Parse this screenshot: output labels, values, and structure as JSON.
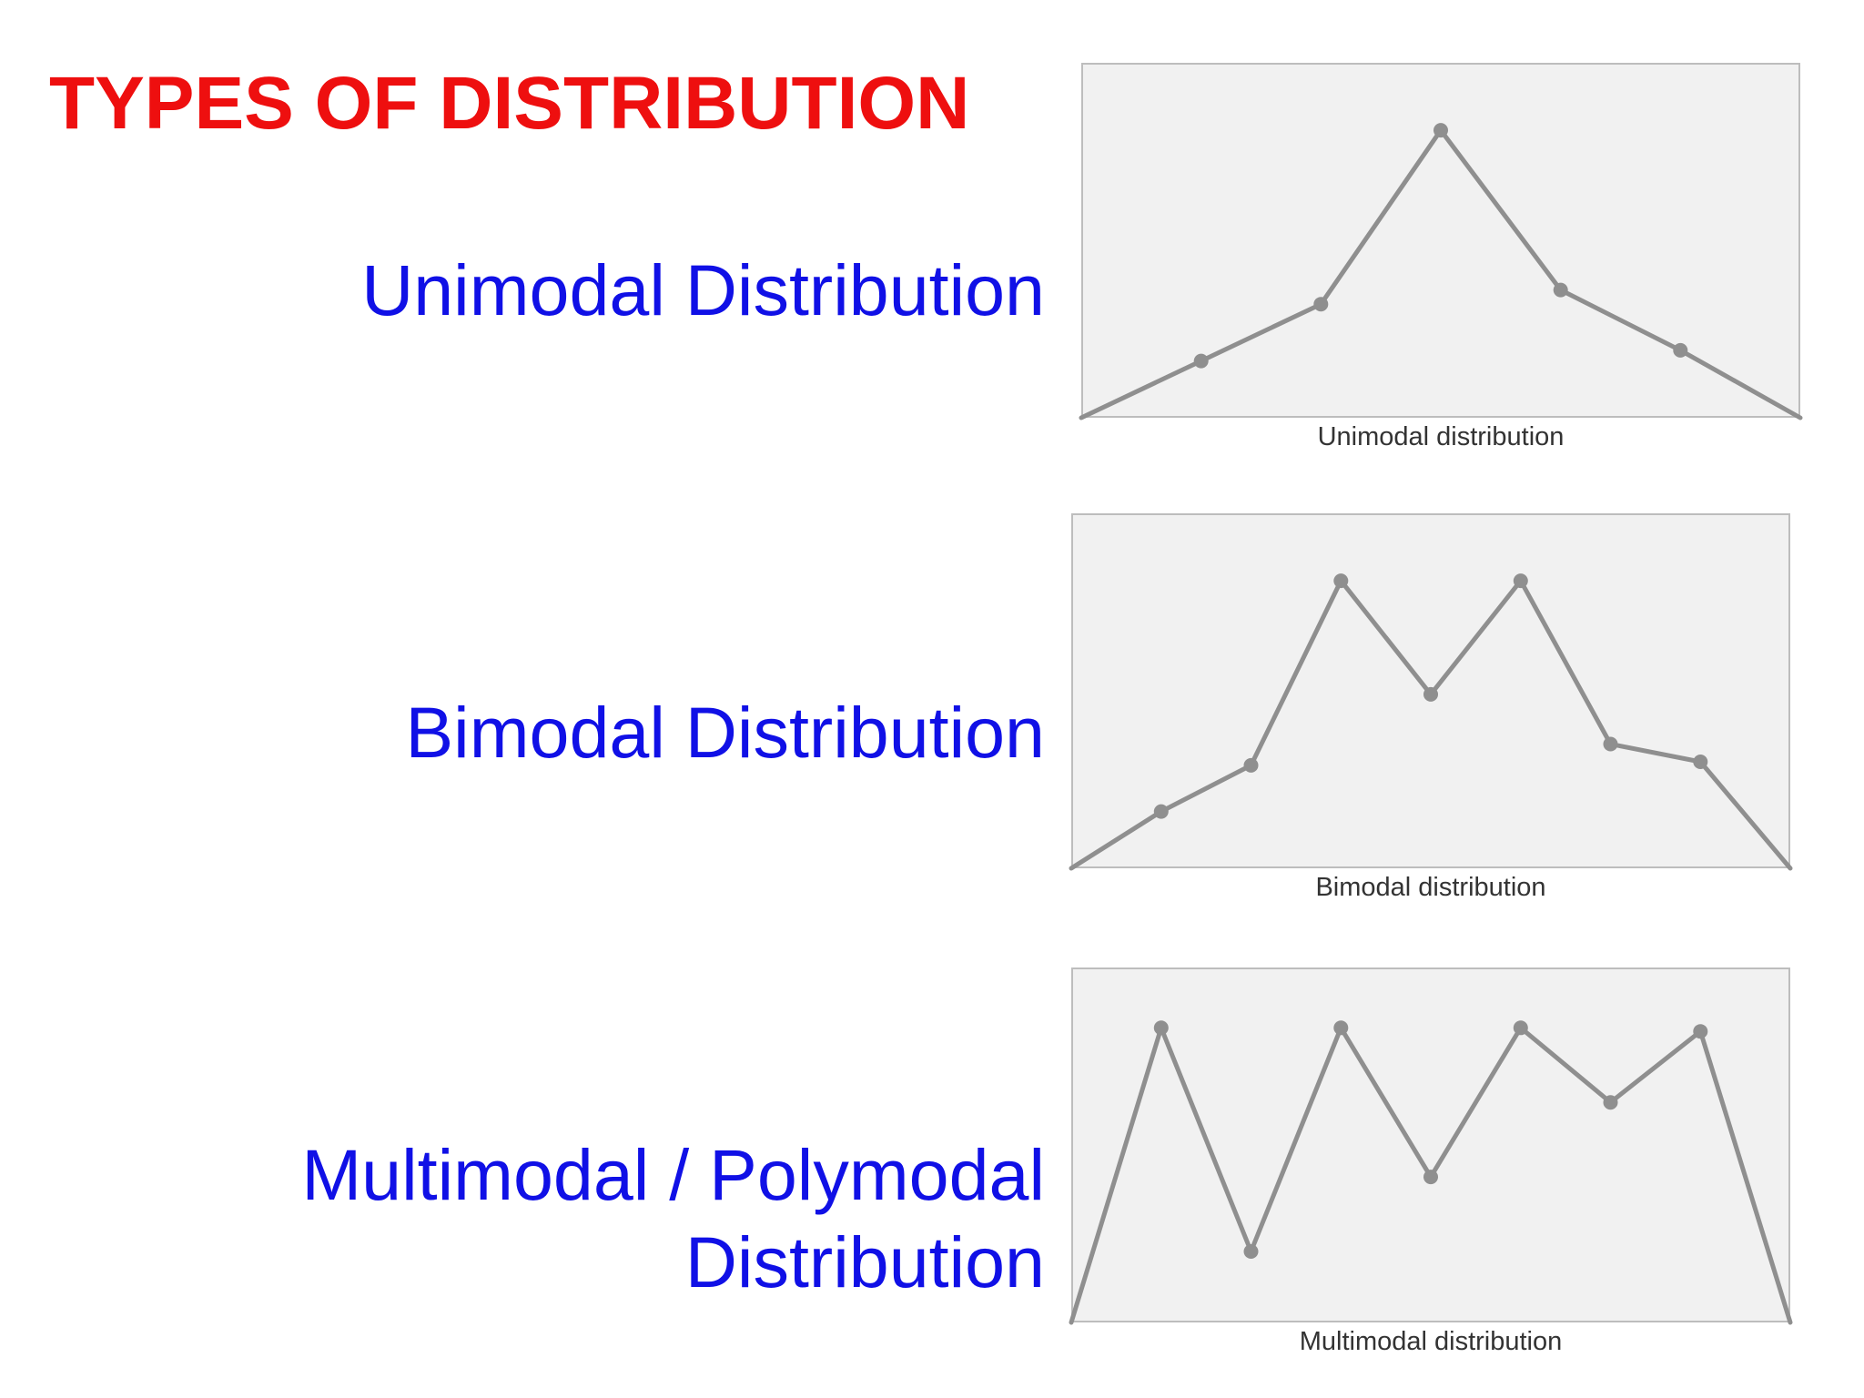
{
  "page_title": "TYPES OF DISTRIBUTION",
  "colors": {
    "title": "#ee0f0f",
    "labels": "#1010e6",
    "panel_fill": "#f1f1f1",
    "panel_border": "#bdbdbd",
    "line": "#8f8f8f",
    "caption": "#333333"
  },
  "rows": [
    {
      "label_lines": [
        "Unimodal Distribution"
      ]
    },
    {
      "label_lines": [
        "Bimodal Distribution"
      ]
    },
    {
      "label_lines": [
        "Multimodal / Polymodal",
        "Distribution"
      ]
    }
  ],
  "chart_data": [
    {
      "type": "line",
      "title": "Unimodal distribution",
      "x": [
        0,
        1,
        2,
        3,
        4,
        5,
        6
      ],
      "y": [
        0,
        0.16,
        0.32,
        0.81,
        0.36,
        0.19,
        0
      ],
      "markers": [
        false,
        true,
        true,
        true,
        true,
        true,
        false
      ],
      "ylim": [
        0,
        1
      ],
      "grid": false,
      "axes_visible": false
    },
    {
      "type": "line",
      "title": "Bimodal distribution",
      "x": [
        0,
        1,
        2,
        3,
        4,
        5,
        6,
        7,
        8
      ],
      "y": [
        0,
        0.16,
        0.29,
        0.81,
        0.49,
        0.81,
        0.35,
        0.3,
        0
      ],
      "markers": [
        false,
        true,
        true,
        true,
        true,
        true,
        true,
        true,
        false
      ],
      "ylim": [
        0,
        1
      ],
      "grid": false,
      "axes_visible": false
    },
    {
      "type": "line",
      "title": "Multimodal distribution",
      "x": [
        0,
        1,
        2,
        3,
        4,
        5,
        6,
        7,
        8
      ],
      "y": [
        0,
        0.83,
        0.2,
        0.83,
        0.41,
        0.83,
        0.62,
        0.82,
        0
      ],
      "markers": [
        false,
        true,
        true,
        true,
        true,
        true,
        true,
        true,
        false
      ],
      "ylim": [
        0,
        1
      ],
      "grid": false,
      "axes_visible": false
    }
  ]
}
